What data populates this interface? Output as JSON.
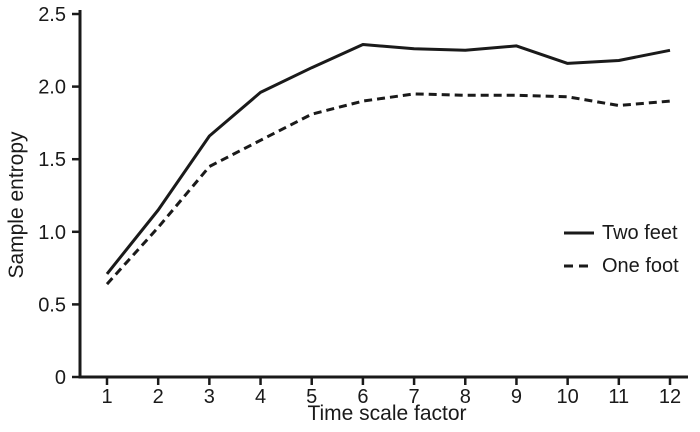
{
  "chart_data": {
    "type": "line",
    "title": "",
    "xlabel": "Time scale factor",
    "ylabel": "Sample entropy",
    "x": [
      1,
      2,
      3,
      4,
      5,
      6,
      7,
      8,
      9,
      10,
      11,
      12
    ],
    "xtick_labels": [
      "1",
      "2",
      "3",
      "4",
      "5",
      "6",
      "7",
      "8",
      "9",
      "10",
      "11",
      "12"
    ],
    "ytick_values": [
      0,
      0.5,
      1.0,
      1.5,
      2.0,
      2.5
    ],
    "ytick_labels": [
      "0",
      "0.5",
      "1.0",
      "1.5",
      "2.0",
      "2.5"
    ],
    "xlim": [
      1,
      12
    ],
    "ylim": [
      0,
      2.5
    ],
    "grid": false,
    "legend_position": "right-middle",
    "line_color": "#1a1a1a",
    "background_color": "#ffffff",
    "series": [
      {
        "name": "Two feet",
        "style": "solid",
        "values": [
          0.71,
          1.15,
          1.66,
          1.96,
          2.13,
          2.29,
          2.26,
          2.25,
          2.28,
          2.16,
          2.18,
          2.25
        ]
      },
      {
        "name": "One foot",
        "style": "dashed",
        "values": [
          0.64,
          1.03,
          1.45,
          1.63,
          1.81,
          1.9,
          1.95,
          1.94,
          1.94,
          1.93,
          1.87,
          1.9
        ]
      }
    ]
  }
}
